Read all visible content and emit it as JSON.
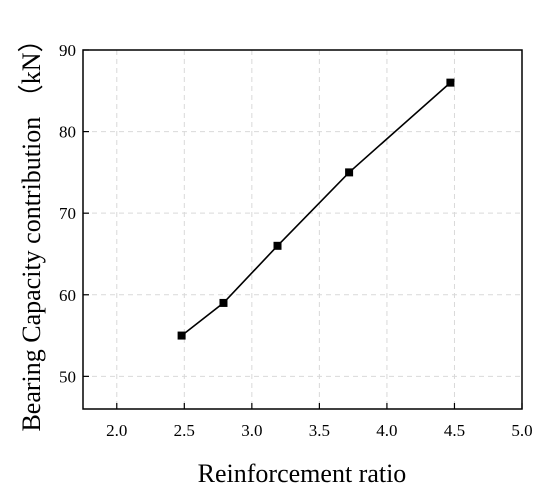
{
  "chart_data": {
    "type": "line",
    "title": "",
    "xlabel": "Reinforcement ratio",
    "ylabel": "Bearing Capacity contribution （kN）",
    "xlim": [
      1.75,
      5.0
    ],
    "ylim": [
      46,
      90
    ],
    "xticks": [
      "2.0",
      "2.5",
      "3.0",
      "3.5",
      "4.0",
      "4.5",
      "5.0"
    ],
    "yticks": [
      "50",
      "60",
      "70",
      "80",
      "90"
    ],
    "grid": true,
    "legend": "none",
    "colors": {
      "line": "#000000",
      "marker": "#000000",
      "grid": "#d9d9d9"
    },
    "series": [
      {
        "marker": "square",
        "x": [
          2.48,
          2.79,
          3.19,
          3.72,
          4.47
        ],
        "y": [
          55,
          59,
          66,
          75,
          86
        ]
      }
    ]
  }
}
